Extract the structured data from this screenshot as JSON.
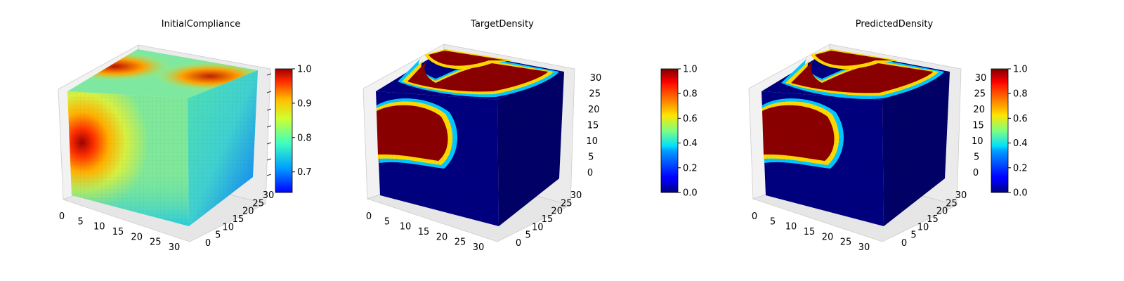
{
  "chart_data": [
    {
      "type": "voxel-3d",
      "title": "InitialCompliance",
      "x_ticks": [
        "0",
        "5",
        "10",
        "15",
        "20",
        "25",
        "30"
      ],
      "y_ticks": [
        "0",
        "5",
        "10",
        "15",
        "20",
        "25",
        "30"
      ],
      "z_ticks": [],
      "grid": true,
      "colormap": "jet",
      "colorbar": {
        "range": [
          0.64,
          1.0
        ],
        "ticks": [
          "0.7",
          "0.8",
          "0.9",
          "1.0"
        ],
        "tick_values": [
          0.7,
          0.8,
          0.9,
          1.0
        ]
      }
    },
    {
      "type": "voxel-3d",
      "title": "TargetDensity",
      "x_ticks": [
        "0",
        "5",
        "10",
        "15",
        "20",
        "25",
        "30"
      ],
      "y_ticks": [
        "0",
        "5",
        "10",
        "15",
        "20",
        "25",
        "30"
      ],
      "z_ticks": [
        "0",
        "5",
        "10",
        "15",
        "20",
        "25",
        "30"
      ],
      "grid": true,
      "colormap": "jet",
      "colorbar": {
        "range": [
          0.0,
          1.0
        ],
        "ticks": [
          "0.0",
          "0.2",
          "0.4",
          "0.6",
          "0.8",
          "1.0"
        ],
        "tick_values": [
          0,
          0.2,
          0.4,
          0.6,
          0.8,
          1.0
        ]
      }
    },
    {
      "type": "voxel-3d",
      "title": "PredictedDensity",
      "x_ticks": [
        "0",
        "5",
        "10",
        "15",
        "20",
        "25",
        "30"
      ],
      "y_ticks": [
        "0",
        "5",
        "10",
        "15",
        "20",
        "25",
        "30"
      ],
      "z_ticks": [
        "0",
        "5",
        "10",
        "15",
        "20",
        "25",
        "30"
      ],
      "grid": true,
      "colormap": "jet",
      "colorbar": {
        "range": [
          0.0,
          1.0
        ],
        "ticks": [
          "0.0",
          "0.2",
          "0.4",
          "0.6",
          "0.8",
          "1.0"
        ],
        "tick_values": [
          0,
          0.2,
          0.4,
          0.6,
          0.8,
          1.0
        ]
      }
    }
  ]
}
